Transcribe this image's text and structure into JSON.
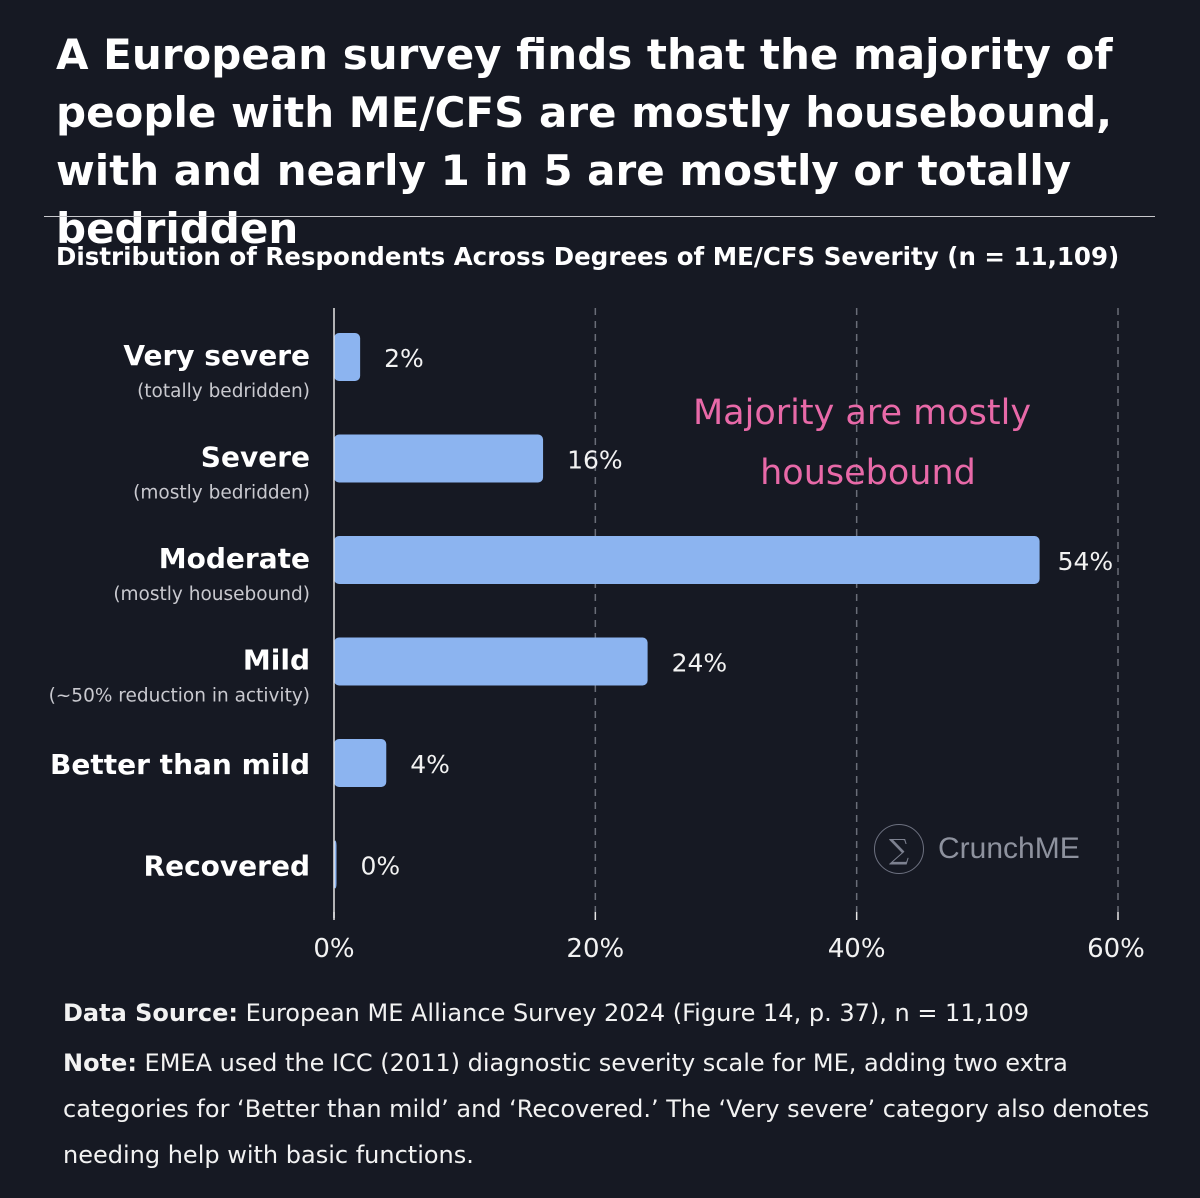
{
  "title": "A European survey finds that the majority of people with ME/CFS are mostly housebound, with and nearly 1 in 5 are mostly or totally bedridden",
  "brand": {
    "name": "CrunchME",
    "logo_icon": "sigma-icon",
    "logo_glyph": "∑"
  },
  "colors": {
    "background": "#161923",
    "bar": "#8cb4f0",
    "annotation": "#e869a8",
    "grid": "#6a6d78"
  },
  "footer": {
    "source_label": "Data Source:",
    "source_text": " European ME Alliance Survey 2024 (Figure 14, p. 37), n = 11,109",
    "note_label": "Note:",
    "note_text": " EMEA used the ICC (2011) diagnostic severity scale for ME, adding two extra categories for ‘Better than mild’ and ‘Recovered.’ The ‘Very severe’ category also denotes needing help with basic functions."
  },
  "chart_data": {
    "type": "bar",
    "orientation": "horizontal",
    "title": "Distribution of Respondents Across Degrees of ME/CFS Severity (n = 11,109)",
    "categories": [
      "Very severe",
      "Severe",
      "Moderate",
      "Mild",
      "Better than mild",
      "Recovered"
    ],
    "category_sublabels": [
      "(totally bedridden)",
      "(mostly bedridden)",
      "(mostly housebound)",
      "(~50% reduction in activity)",
      "",
      ""
    ],
    "values": [
      2,
      16,
      54,
      24,
      4,
      0
    ],
    "value_labels": [
      "2%",
      "16%",
      "54%",
      "24%",
      "4%",
      "0%"
    ],
    "xlim": [
      0,
      60
    ],
    "xticks": [
      0,
      20,
      40,
      60
    ],
    "xtick_labels": [
      "0%",
      "20%",
      "40%",
      "60%"
    ],
    "grid": "vertical dashed",
    "annotation": {
      "lines": [
        "Majority are mostly",
        "housebound"
      ],
      "placement": "upper-right"
    }
  }
}
